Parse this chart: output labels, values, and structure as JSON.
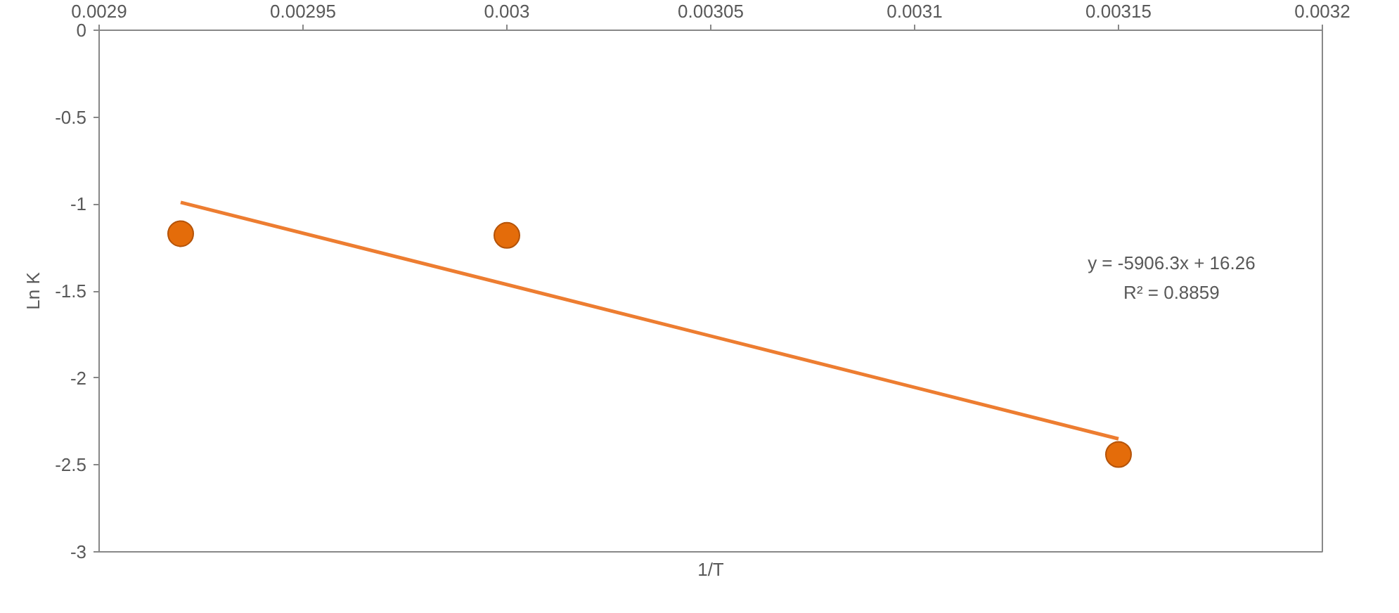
{
  "chart_data": {
    "type": "scatter",
    "xlabel": "1/T",
    "ylabel": "Ln K",
    "xlim": [
      0.0029,
      0.0032
    ],
    "ylim": [
      -3,
      0
    ],
    "xticks": [
      0.0029,
      0.00295,
      0.003,
      0.00305,
      0.0031,
      0.00315,
      0.0032
    ],
    "yticks": [
      0,
      -0.5,
      -1,
      -1.5,
      -2,
      -2.5,
      -3
    ],
    "grid": false,
    "series": [
      {
        "color": "#e46c0a",
        "marker": "circle",
        "x": [
          0.00292,
          0.003,
          0.00315
        ],
        "values": [
          -1.17,
          -1.18,
          -2.44
        ]
      },
      {
        "type": "line",
        "color": "#ed7d31",
        "x": [
          0.00292,
          0.00315
        ],
        "values": [
          -0.99,
          -2.35
        ]
      }
    ],
    "annotations": [
      "y = -5906.3x + 16.26",
      "R² = 0.8859"
    ]
  }
}
